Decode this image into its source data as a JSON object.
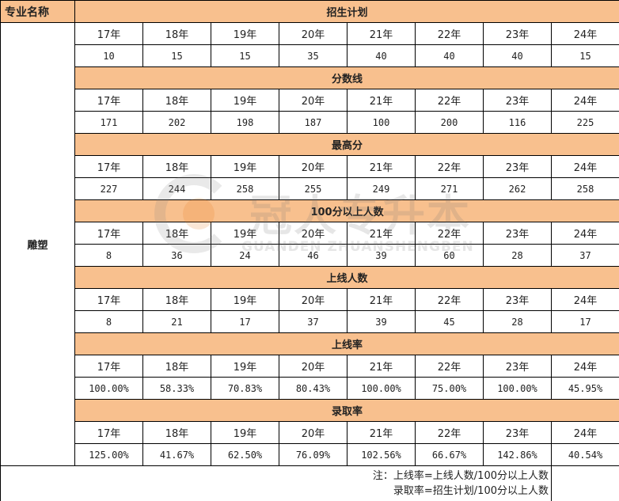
{
  "header": {
    "major_label": "专业名称"
  },
  "major": "雕塑",
  "years": [
    "17年",
    "18年",
    "19年",
    "20年",
    "21年",
    "22年",
    "23年",
    "24年"
  ],
  "sections": [
    {
      "title": "招生计划",
      "values": [
        "10",
        "15",
        "15",
        "35",
        "40",
        "40",
        "40",
        "15"
      ]
    },
    {
      "title": "分数线",
      "values": [
        "171",
        "202",
        "198",
        "187",
        "100",
        "200",
        "116",
        "225"
      ]
    },
    {
      "title": "最高分",
      "values": [
        "227",
        "244",
        "258",
        "255",
        "249",
        "271",
        "262",
        "258"
      ]
    },
    {
      "title": "100分以上人数",
      "values": [
        "8",
        "36",
        "24",
        "46",
        "39",
        "60",
        "28",
        "37"
      ]
    },
    {
      "title": "上线人数",
      "values": [
        "8",
        "21",
        "17",
        "37",
        "39",
        "45",
        "28",
        "17"
      ]
    },
    {
      "title": "上线率",
      "values": [
        "100.00%",
        "58.33%",
        "70.83%",
        "80.43%",
        "100.00%",
        "75.00%",
        "100.00%",
        "45.95%"
      ]
    },
    {
      "title": "录取率",
      "values": [
        "125.00%",
        "41.67%",
        "62.50%",
        "76.09%",
        "102.56%",
        "66.67%",
        "142.86%",
        "40.54%"
      ]
    }
  ],
  "note": {
    "line1": "注：上线率=上线人数/100分以上人数",
    "line2": "录取率=招生计划/100分以上人数"
  },
  "watermark": {
    "cn": "冠人专升本",
    "en": "GUANDEN ZHUANSHENGBEN"
  },
  "colors": {
    "section_bg": "#f8c08e",
    "logo_orange": "#e87b1e"
  }
}
